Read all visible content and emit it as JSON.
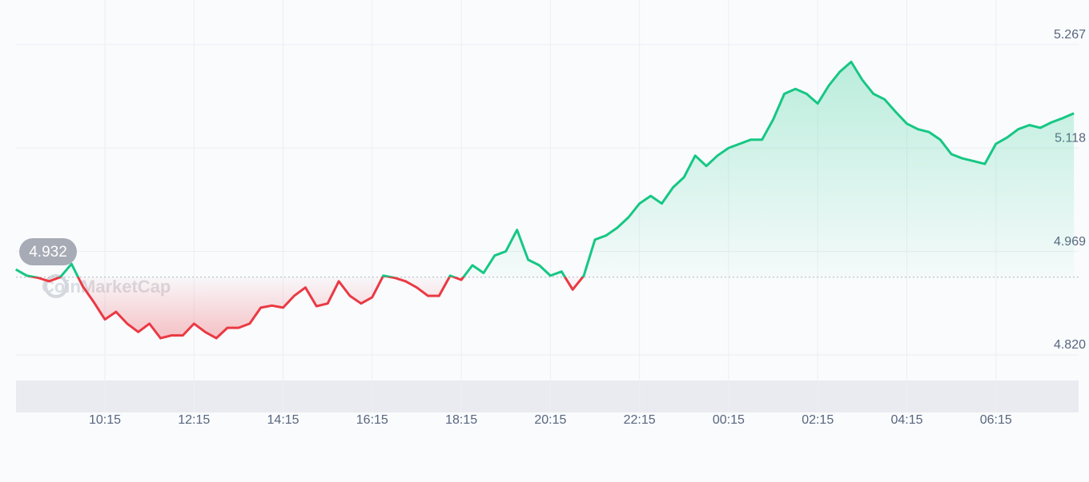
{
  "chart_data": {
    "type": "line",
    "watermark": "CoinMarketCap",
    "reference_value": 4.932,
    "reference_label": "4.932",
    "categories": [
      null,
      null,
      null,
      null,
      null,
      null,
      null,
      null,
      "10:15",
      null,
      null,
      null,
      null,
      null,
      null,
      null,
      "12:15",
      null,
      null,
      null,
      null,
      null,
      null,
      null,
      "14:15",
      null,
      null,
      null,
      null,
      null,
      null,
      null,
      "16:15",
      null,
      null,
      null,
      null,
      null,
      null,
      null,
      "18:15",
      null,
      null,
      null,
      null,
      null,
      null,
      null,
      "20:15",
      null,
      null,
      null,
      null,
      null,
      null,
      null,
      "22:15",
      null,
      null,
      null,
      null,
      null,
      null,
      null,
      "00:15",
      null,
      null,
      null,
      null,
      null,
      null,
      null,
      "02:15",
      null,
      null,
      null,
      null,
      null,
      null,
      null,
      "04:15",
      null,
      null,
      null,
      null,
      null,
      null,
      null,
      "06:15",
      null,
      null,
      null,
      null,
      null,
      null,
      null
    ],
    "values": [
      4.943,
      4.934,
      4.931,
      4.926,
      4.932,
      4.951,
      4.919,
      4.896,
      4.871,
      4.882,
      4.865,
      4.853,
      4.865,
      4.844,
      4.848,
      4.848,
      4.865,
      4.853,
      4.844,
      4.859,
      4.859,
      4.865,
      4.888,
      4.891,
      4.888,
      4.905,
      4.917,
      4.89,
      4.894,
      4.926,
      4.905,
      4.894,
      4.903,
      4.934,
      4.931,
      4.926,
      4.917,
      4.905,
      4.905,
      4.934,
      4.928,
      4.949,
      4.938,
      4.963,
      4.969,
      5.0,
      4.957,
      4.949,
      4.934,
      4.94,
      4.914,
      4.934,
      4.986,
      4.992,
      5.003,
      5.018,
      5.038,
      5.049,
      5.038,
      5.061,
      5.076,
      5.107,
      5.092,
      5.107,
      5.118,
      5.124,
      5.13,
      5.13,
      5.159,
      5.196,
      5.203,
      5.196,
      5.182,
      5.208,
      5.228,
      5.242,
      5.216,
      5.196,
      5.188,
      5.17,
      5.153,
      5.145,
      5.141,
      5.13,
      5.109,
      5.103,
      5.099,
      5.095,
      5.124,
      5.133,
      5.145,
      5.151,
      5.147,
      5.155,
      5.161,
      5.168
    ],
    "up_color": "#16c784",
    "down_color": "#ea3943",
    "ylim": [
      4.79,
      5.33
    ],
    "yticks": [
      {
        "value": 4.82,
        "label": "4.820"
      },
      4.969,
      5.118,
      5.267
    ],
    "grid": true
  }
}
